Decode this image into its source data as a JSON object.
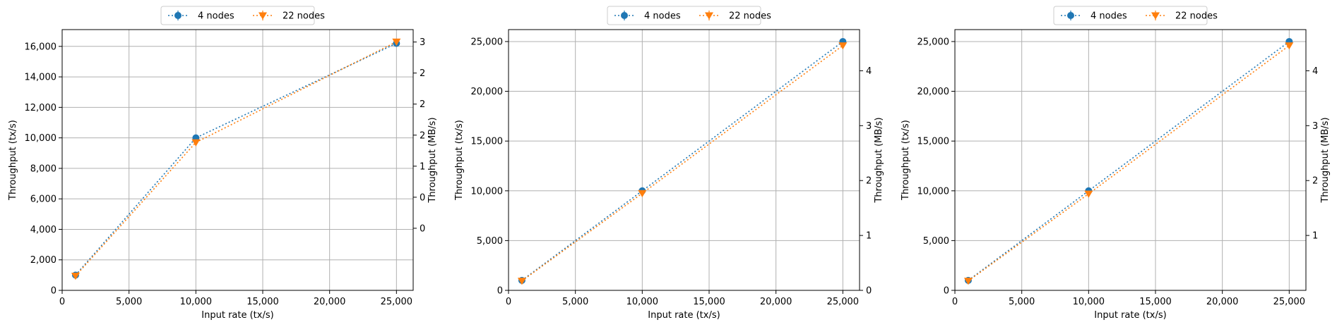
{
  "colors": {
    "series1": "#1f77b4",
    "series2": "#ff7f0e",
    "grid": "#b0b0b0"
  },
  "chart_data": [
    {
      "type": "line",
      "xlabel": "Input rate (tx/s)",
      "ylabel": "Throughput (tx/s)",
      "y2label": "Throughput (MB/s)",
      "xlim": [
        0,
        26250
      ],
      "ylim": [
        0,
        17100
      ],
      "y2lim": [
        -1,
        3.2
      ],
      "xticks": [
        0,
        5000,
        10000,
        15000,
        20000,
        25000
      ],
      "xtick_labels": [
        "0",
        "5,000",
        "10,000",
        "15,000",
        "20,000",
        "25,000"
      ],
      "yticks": [
        0,
        2000,
        4000,
        6000,
        8000,
        10000,
        12000,
        14000,
        16000
      ],
      "ytick_labels": [
        "0",
        "2,000",
        "4,000",
        "6,000",
        "8,000",
        "10,000",
        "12,000",
        "14,000",
        "16,000"
      ],
      "y2ticks": [
        0,
        0.5,
        1,
        1.5,
        2,
        2.5,
        3
      ],
      "y2tick_labels": [
        "0",
        "0",
        "1",
        "2",
        "2",
        "2",
        "3"
      ],
      "grid": true,
      "legend": "top-center",
      "series": [
        {
          "name": "4 nodes",
          "marker": "circle",
          "x": [
            1000,
            10000,
            25000
          ],
          "y": [
            1000,
            10000,
            16200
          ]
        },
        {
          "name": "22 nodes",
          "marker": "triangle-down",
          "x": [
            1000,
            10000,
            25000
          ],
          "y": [
            950,
            9700,
            16300
          ]
        }
      ]
    },
    {
      "type": "line",
      "xlabel": "Input rate (tx/s)",
      "ylabel": "Throughput (tx/s)",
      "y2label": "Throughput (MB/s)",
      "xlim": [
        0,
        26250
      ],
      "ylim": [
        0,
        26200
      ],
      "y2lim": [
        0,
        4.75
      ],
      "xticks": [
        0,
        5000,
        10000,
        15000,
        20000,
        25000
      ],
      "xtick_labels": [
        "0",
        "5,000",
        "10,000",
        "15,000",
        "20,000",
        "25,000"
      ],
      "yticks": [
        0,
        5000,
        10000,
        15000,
        20000,
        25000
      ],
      "ytick_labels": [
        "0",
        "5,000",
        "10,000",
        "15,000",
        "20,000",
        "25,000"
      ],
      "y2ticks": [
        0,
        1,
        2,
        3,
        4
      ],
      "y2tick_labels": [
        "0",
        "1",
        "2",
        "3",
        "4"
      ],
      "grid": true,
      "legend": "top-center",
      "series": [
        {
          "name": "4 nodes",
          "marker": "circle",
          "x": [
            1000,
            10000,
            25000
          ],
          "y": [
            1000,
            10000,
            25000
          ]
        },
        {
          "name": "22 nodes",
          "marker": "triangle-down",
          "x": [
            1000,
            10000,
            25000
          ],
          "y": [
            950,
            9750,
            24600
          ]
        }
      ]
    },
    {
      "type": "line",
      "xlabel": "Input rate (tx/s)",
      "ylabel": "Throughput (tx/s)",
      "y2label": "Throughput (MB/s)",
      "xlim": [
        0,
        26250
      ],
      "ylim": [
        0,
        26200
      ],
      "y2lim": [
        0,
        4.75
      ],
      "xticks": [
        0,
        5000,
        10000,
        15000,
        20000,
        25000
      ],
      "xtick_labels": [
        "0",
        "5,000",
        "10,000",
        "15,000",
        "20,000",
        "25,000"
      ],
      "yticks": [
        0,
        5000,
        10000,
        15000,
        20000,
        25000
      ],
      "ytick_labels": [
        "0",
        "5,000",
        "10,000",
        "15,000",
        "20,000",
        "25,000"
      ],
      "y2ticks": [
        1,
        2,
        3,
        4
      ],
      "y2tick_labels": [
        "1",
        "2",
        "3",
        "4"
      ],
      "grid": true,
      "legend": "top-center",
      "series": [
        {
          "name": "4 nodes",
          "marker": "circle",
          "x": [
            1000,
            10000,
            25000
          ],
          "y": [
            1000,
            10000,
            25000
          ]
        },
        {
          "name": "22 nodes",
          "marker": "triangle-down",
          "x": [
            1000,
            10000,
            25000
          ],
          "y": [
            950,
            9700,
            24600
          ]
        }
      ]
    }
  ]
}
